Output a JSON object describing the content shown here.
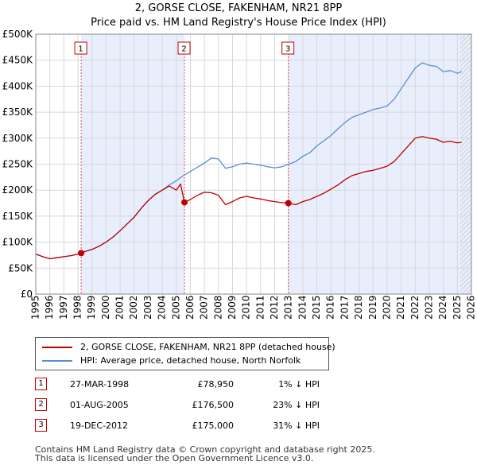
{
  "title_line1": "2, GORSE CLOSE, FAKENHAM, NR21 8PP",
  "title_line2": "Price paid vs. HM Land Registry's House Price Index (HPI)",
  "colors": {
    "property": "#c00000",
    "hpi": "#5b8ed6",
    "shade": "#e8eefb",
    "vline": "#e05050"
  },
  "chart_data": {
    "type": "line",
    "title": "Price paid vs. HM Land Registry's House Price Index (HPI)",
    "xlim": [
      1995,
      2026
    ],
    "ylim": [
      0,
      500000
    ],
    "x_ticks": [
      "1995",
      "1996",
      "1997",
      "1998",
      "1999",
      "2000",
      "2001",
      "2002",
      "2003",
      "2004",
      "2005",
      "2006",
      "2007",
      "2008",
      "2009",
      "2010",
      "2011",
      "2012",
      "2013",
      "2014",
      "2015",
      "2016",
      "2017",
      "2018",
      "2019",
      "2020",
      "2021",
      "2022",
      "2023",
      "2024",
      "2025",
      "2026"
    ],
    "y_ticks": [
      {
        "value": 0,
        "label": "£0"
      },
      {
        "value": 50000,
        "label": "£50K"
      },
      {
        "value": 100000,
        "label": "£100K"
      },
      {
        "value": 150000,
        "label": "£150K"
      },
      {
        "value": 200000,
        "label": "£200K"
      },
      {
        "value": 250000,
        "label": "£250K"
      },
      {
        "value": 300000,
        "label": "£300K"
      },
      {
        "value": 350000,
        "label": "£350K"
      },
      {
        "value": 400000,
        "label": "£400K"
      },
      {
        "value": 450000,
        "label": "£450K"
      },
      {
        "value": 500000,
        "label": "£500K"
      }
    ],
    "shaded_ranges": [
      [
        1998.23,
        2005.58
      ],
      [
        2012.97,
        2026
      ]
    ],
    "hatched_from": 2025.2,
    "series": [
      {
        "name": "2, GORSE CLOSE, FAKENHAM, NR21 8PP (detached house)",
        "x": [
          1995.0,
          1995.5,
          1996.0,
          1996.5,
          1997.0,
          1997.5,
          1998.0,
          1998.23,
          1998.5,
          1999.0,
          1999.5,
          2000.0,
          2000.5,
          2001.0,
          2001.5,
          2002.0,
          2002.5,
          2003.0,
          2003.5,
          2004.0,
          2004.5,
          2005.0,
          2005.3,
          2005.58,
          2006.0,
          2006.5,
          2007.0,
          2007.5,
          2008.0,
          2008.5,
          2009.0,
          2009.5,
          2010.0,
          2010.5,
          2011.0,
          2011.5,
          2012.0,
          2012.5,
          2012.97,
          2013.5,
          2014.0,
          2014.5,
          2015.0,
          2015.5,
          2016.0,
          2016.5,
          2017.0,
          2017.5,
          2018.0,
          2018.5,
          2019.0,
          2019.5,
          2020.0,
          2020.5,
          2021.0,
          2021.5,
          2022.0,
          2022.5,
          2023.0,
          2023.5,
          2024.0,
          2024.5,
          2025.0,
          2025.3
        ],
        "y": [
          77000,
          72000,
          68000,
          70000,
          72000,
          74000,
          77000,
          78950,
          82000,
          86000,
          92000,
          100000,
          110000,
          122000,
          135000,
          148000,
          165000,
          180000,
          192000,
          200000,
          208000,
          200000,
          212000,
          176500,
          182000,
          190000,
          196000,
          195000,
          190000,
          172000,
          178000,
          185000,
          188000,
          185000,
          183000,
          180000,
          178000,
          176000,
          175000,
          172000,
          178000,
          182000,
          188000,
          194000,
          202000,
          210000,
          220000,
          228000,
          232000,
          236000,
          238000,
          242000,
          246000,
          255000,
          270000,
          285000,
          300000,
          303000,
          300000,
          298000,
          292000,
          294000,
          291000,
          292000
        ]
      },
      {
        "name": "HPI: Average price, detached house, North Norfolk",
        "x": [
          1995.0,
          1995.5,
          1996.0,
          1996.5,
          1997.0,
          1997.5,
          1998.0,
          1998.5,
          1999.0,
          1999.5,
          2000.0,
          2000.5,
          2001.0,
          2001.5,
          2002.0,
          2002.5,
          2003.0,
          2003.5,
          2004.0,
          2004.5,
          2005.0,
          2005.5,
          2006.0,
          2006.5,
          2007.0,
          2007.5,
          2008.0,
          2008.5,
          2009.0,
          2009.5,
          2010.0,
          2010.5,
          2011.0,
          2011.5,
          2012.0,
          2012.5,
          2013.0,
          2013.5,
          2014.0,
          2014.5,
          2015.0,
          2015.5,
          2016.0,
          2016.5,
          2017.0,
          2017.5,
          2018.0,
          2018.5,
          2019.0,
          2019.5,
          2020.0,
          2020.5,
          2021.0,
          2021.5,
          2022.0,
          2022.5,
          2023.0,
          2023.5,
          2024.0,
          2024.5,
          2025.0,
          2025.3
        ],
        "y": [
          77000,
          72000,
          68000,
          70000,
          72000,
          74000,
          77000,
          82000,
          86000,
          92000,
          100000,
          110000,
          122000,
          135000,
          148000,
          165000,
          180000,
          192000,
          200000,
          210000,
          218000,
          228000,
          236000,
          244000,
          252000,
          262000,
          260000,
          242000,
          245000,
          250000,
          252000,
          250000,
          248000,
          245000,
          243000,
          245000,
          250000,
          255000,
          265000,
          272000,
          285000,
          295000,
          305000,
          318000,
          330000,
          340000,
          345000,
          350000,
          355000,
          358000,
          362000,
          375000,
          395000,
          415000,
          435000,
          445000,
          440000,
          438000,
          428000,
          430000,
          425000,
          428000
        ]
      }
    ],
    "sale_markers": [
      {
        "label": "1",
        "x": 1998.23,
        "y": 78950
      },
      {
        "label": "2",
        "x": 2005.58,
        "y": 176500
      },
      {
        "label": "3",
        "x": 2012.97,
        "y": 175000
      }
    ]
  },
  "legend": {
    "property_label": "2, GORSE CLOSE, FAKENHAM, NR21 8PP (detached house)",
    "hpi_label": "HPI: Average price, detached house, North Norfolk"
  },
  "sales": [
    {
      "num": "1",
      "date": "27-MAR-1998",
      "price": "£78,950",
      "hpi": "1% ↓ HPI"
    },
    {
      "num": "2",
      "date": "01-AUG-2005",
      "price": "£176,500",
      "hpi": "23% ↓ HPI"
    },
    {
      "num": "3",
      "date": "19-DEC-2012",
      "price": "£175,000",
      "hpi": "31% ↓ HPI"
    }
  ],
  "footer": {
    "line1": "Contains HM Land Registry data © Crown copyright and database right 2025.",
    "line2": "This data is licensed under the Open Government Licence v3.0."
  }
}
